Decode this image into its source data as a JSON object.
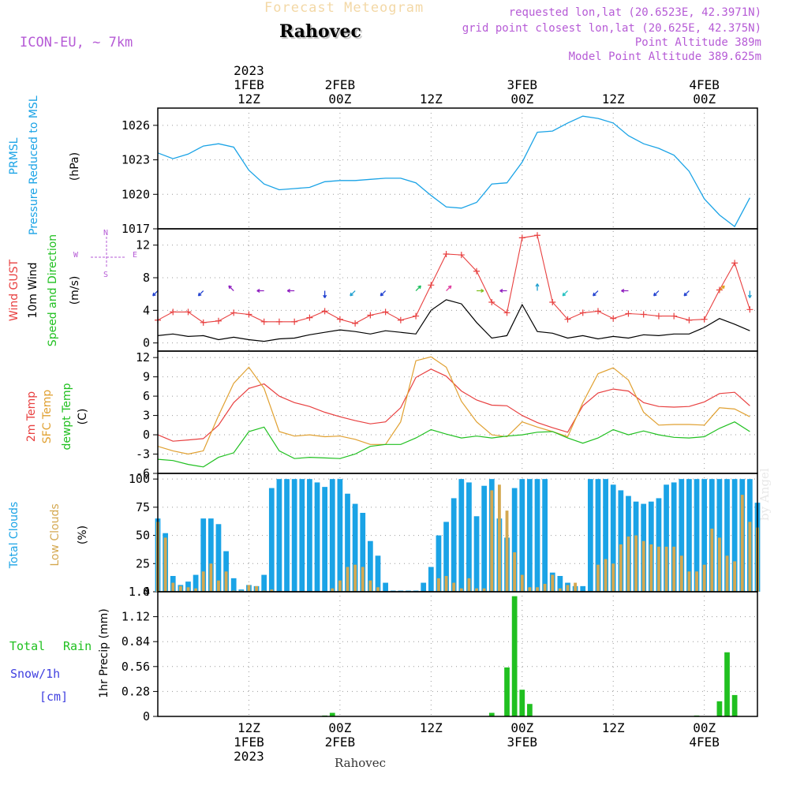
{
  "header": {
    "subtitle_faded": "Forecast Meteogram",
    "location": "Rahovec",
    "model": "ICON-EU, ~ 7km",
    "requested": "requested lon,lat (20.6523E, 42.3971N)",
    "grid_point": "grid point closest lon,lat (20.625E, 42.375N)",
    "point_altitude": "Point Altitude 389m",
    "model_altitude": "Model Point Altitude 389.625m",
    "watermark": "by Angel",
    "bottom_location": "Rahovec"
  },
  "time_axis": {
    "top_ticks": [
      {
        "hour": 12,
        "lines": [
          "2023",
          "1FEB",
          "12Z"
        ]
      },
      {
        "hour": 24,
        "lines": [
          "2FEB",
          "00Z"
        ]
      },
      {
        "hour": 36,
        "lines": [
          "12Z"
        ]
      },
      {
        "hour": 48,
        "lines": [
          "3FEB",
          "00Z"
        ]
      },
      {
        "hour": 60,
        "lines": [
          "12Z"
        ]
      },
      {
        "hour": 72,
        "lines": [
          "4FEB",
          "00Z"
        ]
      }
    ],
    "bottom_ticks": [
      {
        "hour": 12,
        "lines": [
          "12Z",
          "1FEB",
          "2023"
        ]
      },
      {
        "hour": 24,
        "lines": [
          "00Z",
          "2FEB"
        ]
      },
      {
        "hour": 36,
        "lines": [
          "12Z"
        ]
      },
      {
        "hour": 48,
        "lines": [
          "00Z",
          "3FEB"
        ]
      },
      {
        "hour": 60,
        "lines": [
          "12Z"
        ]
      },
      {
        "hour": 72,
        "lines": [
          "00Z",
          "4FEB"
        ]
      }
    ]
  },
  "labels": {
    "prmsl_short": "PRMSL",
    "prmsl_long": "Pressure Reduced to MSL",
    "prmsl_unit": "(hPa)",
    "gust": "Wind GUST",
    "wind10": "10m Wind",
    "wind_dir": "Speed and Direction",
    "wind_unit": "(m/s)",
    "compass_n": "N",
    "compass_s": "S",
    "compass_w": "W",
    "compass_e": "E",
    "t2m": "2m Temp",
    "tsfc": "SFC Temp",
    "tdew": "dewpt Temp",
    "temp_unit": "(C)",
    "tcc": "Total Clouds",
    "lcc": "Low Clouds",
    "cloud_unit": "(%)",
    "rain_total": "Total",
    "rain_word": "Rain",
    "snow": "Snow/1h",
    "snow_unit": "[cm]",
    "precip": "1hr Precip (mm)"
  },
  "colors": {
    "pressure": "#1aa3e6",
    "gust": "#e84040",
    "wind": "#000000",
    "t2m": "#e84040",
    "tsfc": "#e0a030",
    "tdew": "#20c020",
    "tcc": "#1aa3e6",
    "lcc": "#d4a850",
    "rain": "#20c020",
    "snow": "#4040e0",
    "label_purple": "#b65bd6"
  },
  "chart_data": [
    {
      "type": "line",
      "name": "PRMSL",
      "ylim": [
        1017,
        1027.5
      ],
      "yticks": [
        1017,
        1020,
        1023,
        1026
      ],
      "series": [
        {
          "name": "PRMSL",
          "x": [
            0,
            2,
            4,
            6,
            8,
            10,
            12,
            14,
            16,
            18,
            20,
            22,
            24,
            26,
            28,
            30,
            32,
            34,
            36,
            38,
            40,
            42,
            44,
            46,
            48,
            50,
            52,
            54,
            56,
            58,
            60,
            62,
            64,
            66,
            68,
            70,
            72,
            74,
            76,
            78
          ],
          "values": [
            1023.6,
            1023.1,
            1023.5,
            1024.2,
            1024.4,
            1024.1,
            1022.1,
            1020.9,
            1020.4,
            1020.5,
            1020.6,
            1021.1,
            1021.2,
            1021.2,
            1021.3,
            1021.4,
            1021.4,
            1021.0,
            1019.9,
            1018.9,
            1018.8,
            1019.3,
            1020.9,
            1021.0,
            1022.8,
            1025.4,
            1025.5,
            1026.2,
            1026.8,
            1026.6,
            1026.2,
            1025.1,
            1024.4,
            1024.0,
            1023.4,
            1022.0,
            1019.6,
            1018.2,
            1017.2,
            1019.7
          ]
        }
      ]
    },
    {
      "type": "line",
      "name": "Wind",
      "ylim": [
        -1,
        14
      ],
      "yticks": [
        0,
        4,
        8,
        12
      ],
      "series": [
        {
          "name": "Wind GUST",
          "x": [
            0,
            2,
            4,
            6,
            8,
            10,
            12,
            14,
            16,
            18,
            20,
            22,
            24,
            26,
            28,
            30,
            32,
            34,
            36,
            38,
            40,
            42,
            44,
            46,
            48,
            50,
            52,
            54,
            56,
            58,
            60,
            62,
            64,
            66,
            68,
            70,
            72,
            74,
            76,
            78
          ],
          "values": [
            2.8,
            3.8,
            3.8,
            2.5,
            2.7,
            3.7,
            3.5,
            2.6,
            2.6,
            2.6,
            3.1,
            3.9,
            2.9,
            2.4,
            3.4,
            3.8,
            2.8,
            3.3,
            7.1,
            10.9,
            10.8,
            8.8,
            5.0,
            3.7,
            12.9,
            13.2,
            5.0,
            2.9,
            3.7,
            3.9,
            3.0,
            3.6,
            3.5,
            3.3,
            3.3,
            2.8,
            2.9,
            6.5,
            9.8,
            4.1
          ]
        },
        {
          "name": "10m Wind",
          "x": [
            0,
            2,
            4,
            6,
            8,
            10,
            12,
            14,
            16,
            18,
            20,
            22,
            24,
            26,
            28,
            30,
            32,
            34,
            36,
            38,
            40,
            42,
            44,
            46,
            48,
            50,
            52,
            54,
            56,
            58,
            60,
            62,
            64,
            66,
            68,
            70,
            72,
            74,
            76,
            78
          ],
          "values": [
            0.9,
            1.1,
            0.8,
            0.9,
            0.4,
            0.7,
            0.4,
            0.2,
            0.5,
            0.6,
            1.0,
            1.3,
            1.6,
            1.4,
            1.1,
            1.5,
            1.3,
            1.1,
            4.0,
            5.3,
            4.8,
            2.5,
            0.6,
            0.9,
            4.7,
            1.4,
            1.2,
            0.6,
            0.9,
            0.5,
            0.8,
            0.6,
            1.0,
            0.9,
            1.1,
            1.1,
            1.9,
            3.0,
            2.3,
            1.5
          ]
        }
      ],
      "arrows": [
        {
          "x": 0,
          "dir": "SW",
          "color": "#2040d0"
        },
        {
          "x": 6,
          "dir": "SW",
          "color": "#2040d0"
        },
        {
          "x": 10,
          "dir": "NW",
          "color": "#9020c0"
        },
        {
          "x": 14,
          "dir": "W",
          "color": "#9020c0"
        },
        {
          "x": 18,
          "dir": "W",
          "color": "#9020c0"
        },
        {
          "x": 22,
          "dir": "S",
          "color": "#2040d0"
        },
        {
          "x": 26,
          "dir": "SW",
          "color": "#20a0d0"
        },
        {
          "x": 30,
          "dir": "SW",
          "color": "#2040d0"
        },
        {
          "x": 34,
          "dir": "NE",
          "color": "#20c060"
        },
        {
          "x": 38,
          "dir": "NE",
          "color": "#e040a0"
        },
        {
          "x": 42,
          "dir": "E",
          "color": "#80c020"
        },
        {
          "x": 46,
          "dir": "W",
          "color": "#9020c0"
        },
        {
          "x": 50,
          "dir": "N",
          "color": "#20a0d0"
        },
        {
          "x": 54,
          "dir": "SW",
          "color": "#20c0c0"
        },
        {
          "x": 58,
          "dir": "SW",
          "color": "#2040d0"
        },
        {
          "x": 62,
          "dir": "W",
          "color": "#9020c0"
        },
        {
          "x": 66,
          "dir": "SW",
          "color": "#2040d0"
        },
        {
          "x": 70,
          "dir": "SW",
          "color": "#2040d0"
        },
        {
          "x": 74,
          "dir": "NE",
          "color": "#e0a020"
        },
        {
          "x": 78,
          "dir": "S",
          "color": "#20a0d0"
        }
      ]
    },
    {
      "type": "line",
      "name": "Temperature",
      "ylim": [
        -6,
        13
      ],
      "yticks": [
        -6,
        -3,
        0,
        3,
        6,
        9,
        12
      ],
      "series": [
        {
          "name": "2m Temp",
          "x": [
            0,
            2,
            4,
            6,
            8,
            10,
            12,
            14,
            16,
            18,
            20,
            22,
            24,
            26,
            28,
            30,
            32,
            34,
            36,
            38,
            40,
            42,
            44,
            46,
            48,
            50,
            52,
            54,
            56,
            58,
            60,
            62,
            64,
            66,
            68,
            70,
            72,
            74,
            76,
            78
          ],
          "values": [
            0.0,
            -1.0,
            -0.8,
            -0.6,
            1.5,
            5.0,
            7.2,
            7.9,
            6.0,
            5.0,
            4.4,
            3.5,
            2.8,
            2.2,
            1.7,
            2.0,
            4.2,
            8.9,
            10.2,
            9.1,
            6.8,
            5.4,
            4.6,
            4.5,
            3.0,
            1.9,
            1.1,
            0.4,
            4.5,
            6.5,
            7.1,
            6.8,
            5.0,
            4.4,
            4.3,
            4.4,
            5.1,
            6.4,
            6.6,
            4.5
          ]
        },
        {
          "name": "SFC Temp",
          "x": [
            0,
            2,
            4,
            6,
            8,
            10,
            12,
            14,
            16,
            18,
            20,
            22,
            24,
            26,
            28,
            30,
            32,
            34,
            36,
            38,
            40,
            42,
            44,
            46,
            48,
            50,
            52,
            54,
            56,
            58,
            60,
            62,
            64,
            66,
            68,
            70,
            72,
            74,
            76,
            78
          ],
          "values": [
            -1.8,
            -2.5,
            -3.0,
            -2.5,
            3.0,
            8.0,
            10.5,
            7.2,
            0.5,
            -0.2,
            0.0,
            -0.3,
            -0.2,
            -0.7,
            -1.5,
            -1.5,
            2.0,
            11.5,
            12.1,
            10.5,
            5.2,
            2.0,
            0.0,
            -0.3,
            2.0,
            1.2,
            0.5,
            -0.3,
            5.0,
            9.5,
            10.4,
            8.5,
            3.5,
            1.5,
            1.6,
            1.6,
            1.5,
            4.2,
            4.0,
            2.8
          ]
        },
        {
          "name": "dewpt Temp",
          "x": [
            0,
            2,
            4,
            6,
            8,
            10,
            12,
            14,
            16,
            18,
            20,
            22,
            24,
            26,
            28,
            30,
            32,
            34,
            36,
            38,
            40,
            42,
            44,
            46,
            48,
            50,
            52,
            54,
            56,
            58,
            60,
            62,
            64,
            66,
            68,
            70,
            72,
            74,
            76,
            78
          ],
          "values": [
            -3.8,
            -4.0,
            -4.6,
            -5.0,
            -3.5,
            -2.8,
            0.5,
            1.2,
            -2.5,
            -3.7,
            -3.5,
            -3.6,
            -3.7,
            -3.0,
            -1.8,
            -1.5,
            -1.5,
            -0.5,
            0.8,
            0.1,
            -0.5,
            -0.2,
            -0.5,
            -0.2,
            0.0,
            0.4,
            0.5,
            -0.5,
            -1.3,
            -0.5,
            0.8,
            0.0,
            0.6,
            0.0,
            -0.4,
            -0.5,
            -0.3,
            1.0,
            2.0,
            0.5
          ]
        }
      ]
    },
    {
      "type": "bar",
      "name": "Clouds",
      "ylim": [
        0,
        105
      ],
      "yticks": [
        0,
        25,
        50,
        75,
        100
      ],
      "x": [
        0,
        1,
        2,
        3,
        4,
        5,
        6,
        7,
        8,
        9,
        10,
        11,
        12,
        13,
        14,
        15,
        16,
        17,
        18,
        19,
        20,
        21,
        22,
        23,
        24,
        25,
        26,
        27,
        28,
        29,
        30,
        31,
        32,
        33,
        34,
        35,
        36,
        37,
        38,
        39,
        40,
        41,
        42,
        43,
        44,
        45,
        46,
        47,
        48,
        49,
        50,
        51,
        52,
        53,
        54,
        55,
        56,
        57,
        58,
        59,
        60,
        61,
        62,
        63,
        64,
        65,
        66,
        67,
        68,
        69,
        70,
        71,
        72,
        73,
        74,
        75,
        76,
        77,
        78,
        79
      ],
      "series": [
        {
          "name": "Total Clouds",
          "values": [
            65,
            52,
            14,
            6,
            9,
            15,
            65,
            65,
            60,
            36,
            12,
            2,
            6,
            5,
            15,
            92,
            100,
            100,
            100,
            100,
            100,
            97,
            93,
            100,
            100,
            87,
            78,
            70,
            45,
            32,
            8,
            1,
            1,
            1,
            1,
            8,
            22,
            50,
            62,
            83,
            100,
            97,
            67,
            94,
            100,
            65,
            48,
            92,
            100,
            100,
            100,
            100,
            17,
            14,
            8,
            5,
            5,
            100,
            100,
            100,
            95,
            90,
            85,
            80,
            78,
            80,
            83,
            95,
            97,
            100,
            100,
            100,
            100,
            100,
            100,
            100,
            100,
            100,
            100,
            79
          ]
        },
        {
          "name": "Low Clouds",
          "values": [
            62,
            48,
            8,
            5,
            4,
            3,
            18,
            25,
            10,
            18,
            1,
            1,
            6,
            5,
            1,
            2,
            0,
            0,
            0,
            0,
            0,
            0,
            0,
            3,
            10,
            22,
            24,
            22,
            10,
            4,
            0,
            0,
            0,
            0,
            0,
            0,
            0,
            12,
            14,
            8,
            3,
            12,
            3,
            3,
            90,
            95,
            72,
            35,
            15,
            4,
            4,
            7,
            15,
            3,
            6,
            8,
            0,
            0,
            24,
            29,
            25,
            42,
            49,
            50,
            45,
            42,
            40,
            40,
            40,
            32,
            18,
            18,
            24,
            56,
            48,
            32,
            27,
            86,
            62,
            57
          ]
        }
      ]
    },
    {
      "type": "bar",
      "name": "Precipitation",
      "ylim": [
        0,
        1.4
      ],
      "yticks": [
        0,
        0.28,
        0.56,
        0.84,
        1.12,
        1.4
      ],
      "x": [
        22,
        23,
        44,
        46,
        47,
        48,
        49,
        50,
        71,
        74,
        75,
        76
      ],
      "series": [
        {
          "name": "Total Rain",
          "values": [
            0.01,
            0.04,
            0.04,
            0.55,
            1.35,
            0.3,
            0.14,
            0.0,
            0.01,
            0.17,
            0.72,
            0.24
          ]
        },
        {
          "name": "Snow/1h",
          "values": [
            0,
            0,
            0,
            0,
            0,
            0,
            0,
            0,
            0,
            0,
            0,
            0
          ]
        }
      ]
    }
  ]
}
